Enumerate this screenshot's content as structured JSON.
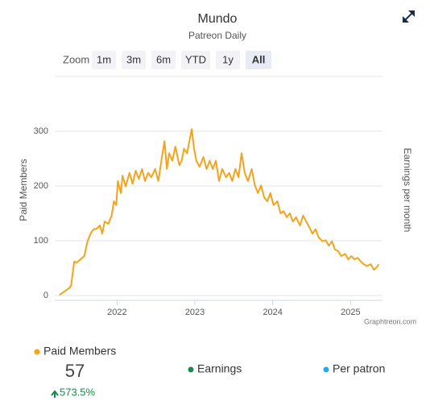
{
  "chart_data": {
    "type": "line",
    "title": "Mundo",
    "subtitle": "Patreon Daily",
    "y_axis_label": "Paid Members",
    "y2_axis_label": "Earnings per month",
    "credit": "Graphtreon.com",
    "xlim": [
      2021.2,
      2025.41
    ],
    "xticks": [
      2022,
      2023,
      2024,
      2025
    ],
    "ylim": [
      0,
      400
    ],
    "yticks": [
      0,
      100,
      200,
      300
    ],
    "grid": true,
    "series": [
      {
        "name": "Paid Members",
        "color": "#f5a31a",
        "x": [
          2021.26,
          2021.38,
          2021.41,
          2021.45,
          2021.48,
          2021.53,
          2021.58,
          2021.62,
          2021.66,
          2021.7,
          2021.74,
          2021.78,
          2021.81,
          2021.84,
          2021.89,
          2021.93,
          2021.96,
          2021.99,
          2022.01,
          2022.05,
          2022.07,
          2022.11,
          2022.16,
          2022.2,
          2022.24,
          2022.28,
          2022.32,
          2022.36,
          2022.4,
          2022.44,
          2022.49,
          2022.53,
          2022.57,
          2022.61,
          2022.64,
          2022.67,
          2022.71,
          2022.75,
          2022.8,
          2022.83,
          2022.86,
          2022.9,
          2022.93,
          2022.96,
          2022.99,
          2023.02,
          2023.06,
          2023.11,
          2023.15,
          2023.19,
          2023.23,
          2023.27,
          2023.31,
          2023.35,
          2023.4,
          2023.44,
          2023.48,
          2023.52,
          2023.56,
          2023.6,
          2023.64,
          2023.68,
          2023.73,
          2023.77,
          2023.81,
          2023.85,
          2023.89,
          2023.93,
          2023.97,
          2024.01,
          2024.06,
          2024.1,
          2024.14,
          2024.18,
          2024.22,
          2024.26,
          2024.3,
          2024.35,
          2024.39,
          2024.43,
          2024.47,
          2024.51,
          2024.55,
          2024.59,
          2024.64,
          2024.68,
          2024.72,
          2024.76,
          2024.8,
          2024.84,
          2024.88,
          2024.93,
          2024.97,
          2025.01,
          2025.05,
          2025.09,
          2025.13,
          2025.17,
          2025.21,
          2025.26,
          2025.3,
          2025.34,
          2025.36
        ],
        "values": [
          1,
          13,
          18,
          62,
          60,
          66,
          72,
          99,
          113,
          121,
          122,
          128,
          113,
          135,
          131,
          146,
          172,
          165,
          209,
          187,
          219,
          199,
          224,
          204,
          228,
          213,
          231,
          209,
          224,
          216,
          231,
          209,
          246,
          282,
          231,
          260,
          246,
          272,
          238,
          246,
          268,
          260,
          282,
          304,
          268,
          246,
          235,
          253,
          231,
          246,
          231,
          246,
          209,
          231,
          216,
          224,
          209,
          231,
          216,
          260,
          224,
          209,
          231,
          201,
          187,
          201,
          179,
          172,
          187,
          165,
          172,
          150,
          154,
          143,
          150,
          135,
          143,
          128,
          146,
          135,
          125,
          113,
          121,
          106,
          99,
          101,
          91,
          99,
          84,
          81,
          72,
          76,
          66,
          72,
          66,
          69,
          62,
          57,
          54,
          57,
          47,
          52,
          57
        ]
      }
    ],
    "other_series": [
      {
        "name": "Earnings",
        "color": "#1a8a4a"
      },
      {
        "name": "Per patron",
        "color": "#27a9f1"
      }
    ],
    "summary": {
      "value": "57",
      "change": "573.5%",
      "change_color": "#1a8a4a"
    }
  },
  "zoom": {
    "label": "Zoom",
    "buttons": [
      "1m",
      "3m",
      "6m",
      "YTD",
      "1y",
      "All"
    ],
    "selected": "All"
  }
}
